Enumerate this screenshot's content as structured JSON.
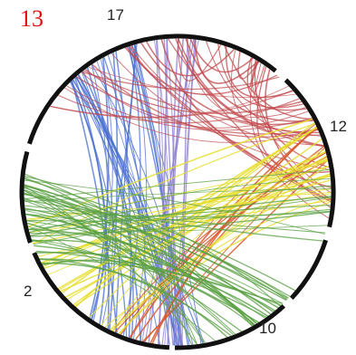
{
  "panel_label": "13",
  "panel_label_color": "#e01010",
  "chromosome_labels": {
    "c17": "17",
    "c12": "12",
    "c2": "2",
    "c10": "10"
  },
  "ring_color": "#111111",
  "ribbon_colors": {
    "blue": "#4a6fd0",
    "purple": "#8f7fd2",
    "red": "#c0484c",
    "orange": "#d8582c",
    "yellow": "#e6de2e",
    "green": "#5aa043"
  }
}
